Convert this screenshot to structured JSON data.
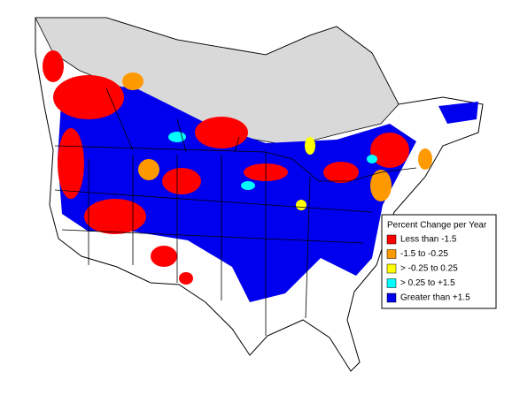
{
  "legend": {
    "title": "Percent Change per Year",
    "items": [
      {
        "label": "Less than -1.5",
        "color": "#ff0000"
      },
      {
        "label": "-1.5 to -0.25",
        "color": "#ff9900"
      },
      {
        "label": "> -0.25 to 0.25",
        "color": "#ffff00"
      },
      {
        "label": "> 0.25 to +1.5",
        "color": "#00ffff"
      },
      {
        "label": "Greater than +1.5",
        "color": "#0000ee"
      }
    ]
  }
}
